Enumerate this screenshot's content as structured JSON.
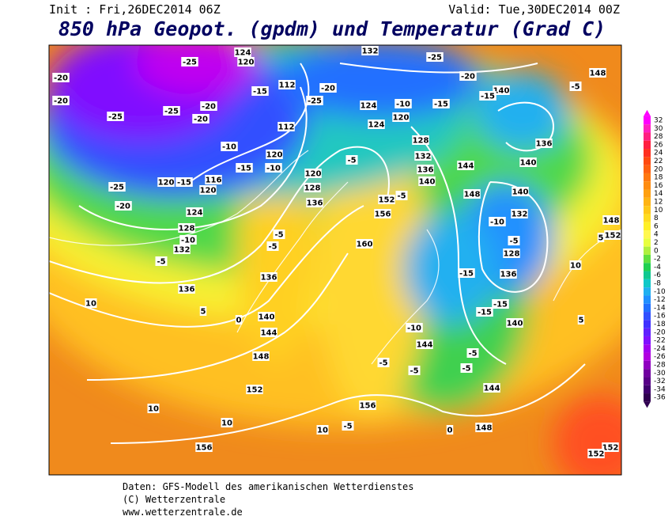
{
  "header": {
    "init": "Init : Fri,26DEC2014 06Z",
    "valid": "Valid: Tue,30DEC2014 00Z",
    "title": "850 hPa Geopot. (gpdm) und Temperatur (Grad C)"
  },
  "colorbar": {
    "ticks": [
      32,
      30,
      28,
      26,
      24,
      22,
      20,
      18,
      16,
      14,
      12,
      10,
      8,
      6,
      4,
      2,
      0,
      -2,
      -4,
      -6,
      -8,
      -10,
      -12,
      -14,
      -16,
      -18,
      -20,
      -22,
      -24,
      -26,
      -28,
      -30,
      -32,
      -34,
      -36
    ],
    "colors": [
      "#ff00ff",
      "#ff20c0",
      "#ff2080",
      "#ff2040",
      "#ff3020",
      "#ff4a10",
      "#ff6010",
      "#ff7810",
      "#ff8c10",
      "#ffa010",
      "#ffb414",
      "#ffc818",
      "#ffdc20",
      "#fff028",
      "#fff850",
      "#e8ff40",
      "#b0f040",
      "#60e040",
      "#20d050",
      "#10c890",
      "#10c8c8",
      "#20b0f0",
      "#2090ff",
      "#2070ff",
      "#3050ff",
      "#4030ff",
      "#6020ff",
      "#8010ff",
      "#a000f0",
      "#b000e0",
      "#9000c0",
      "#7000a0",
      "#580088",
      "#400070",
      "#300050"
    ]
  },
  "map_labels": [
    "-20",
    "-20",
    "-25",
    "-25",
    "-20",
    "-20",
    "-25",
    "-20",
    "-10",
    "-15",
    "-10",
    "120",
    "-15",
    "116",
    "120",
    "124",
    "128",
    "-10",
    "132",
    "-5",
    "136",
    "5",
    "10",
    "0",
    "140",
    "144",
    "148",
    "152",
    "10",
    "10",
    "156",
    "10",
    "-5",
    "156",
    "0",
    "148",
    "144",
    "-5",
    "-5",
    "-10",
    "144",
    "-5",
    "-5",
    "-15",
    "-15",
    "140",
    "-15",
    "136",
    "128",
    "-5",
    "-10",
    "132",
    "140",
    "148",
    "144",
    "140",
    "136",
    "132",
    "128",
    "152",
    "156",
    "160",
    "-5",
    "136",
    "128",
    "120",
    "112",
    "120",
    "112",
    "-15",
    "-25",
    "-20",
    "124",
    "-10",
    "120",
    "124",
    "-15",
    "-25",
    "-20",
    "140",
    "-15",
    "-5",
    "148",
    "136",
    "140",
    "-5",
    "-5",
    "-5",
    "136",
    "5",
    "148",
    "152",
    "10",
    "5",
    "152",
    "152",
    "132",
    "124",
    "120",
    "-25"
  ],
  "footer": [
    "Daten: GFS-Modell des amerikanischen Wetterdienstes",
    "(C) Wetterzentrale",
    "www.wetterzentrale.de"
  ]
}
